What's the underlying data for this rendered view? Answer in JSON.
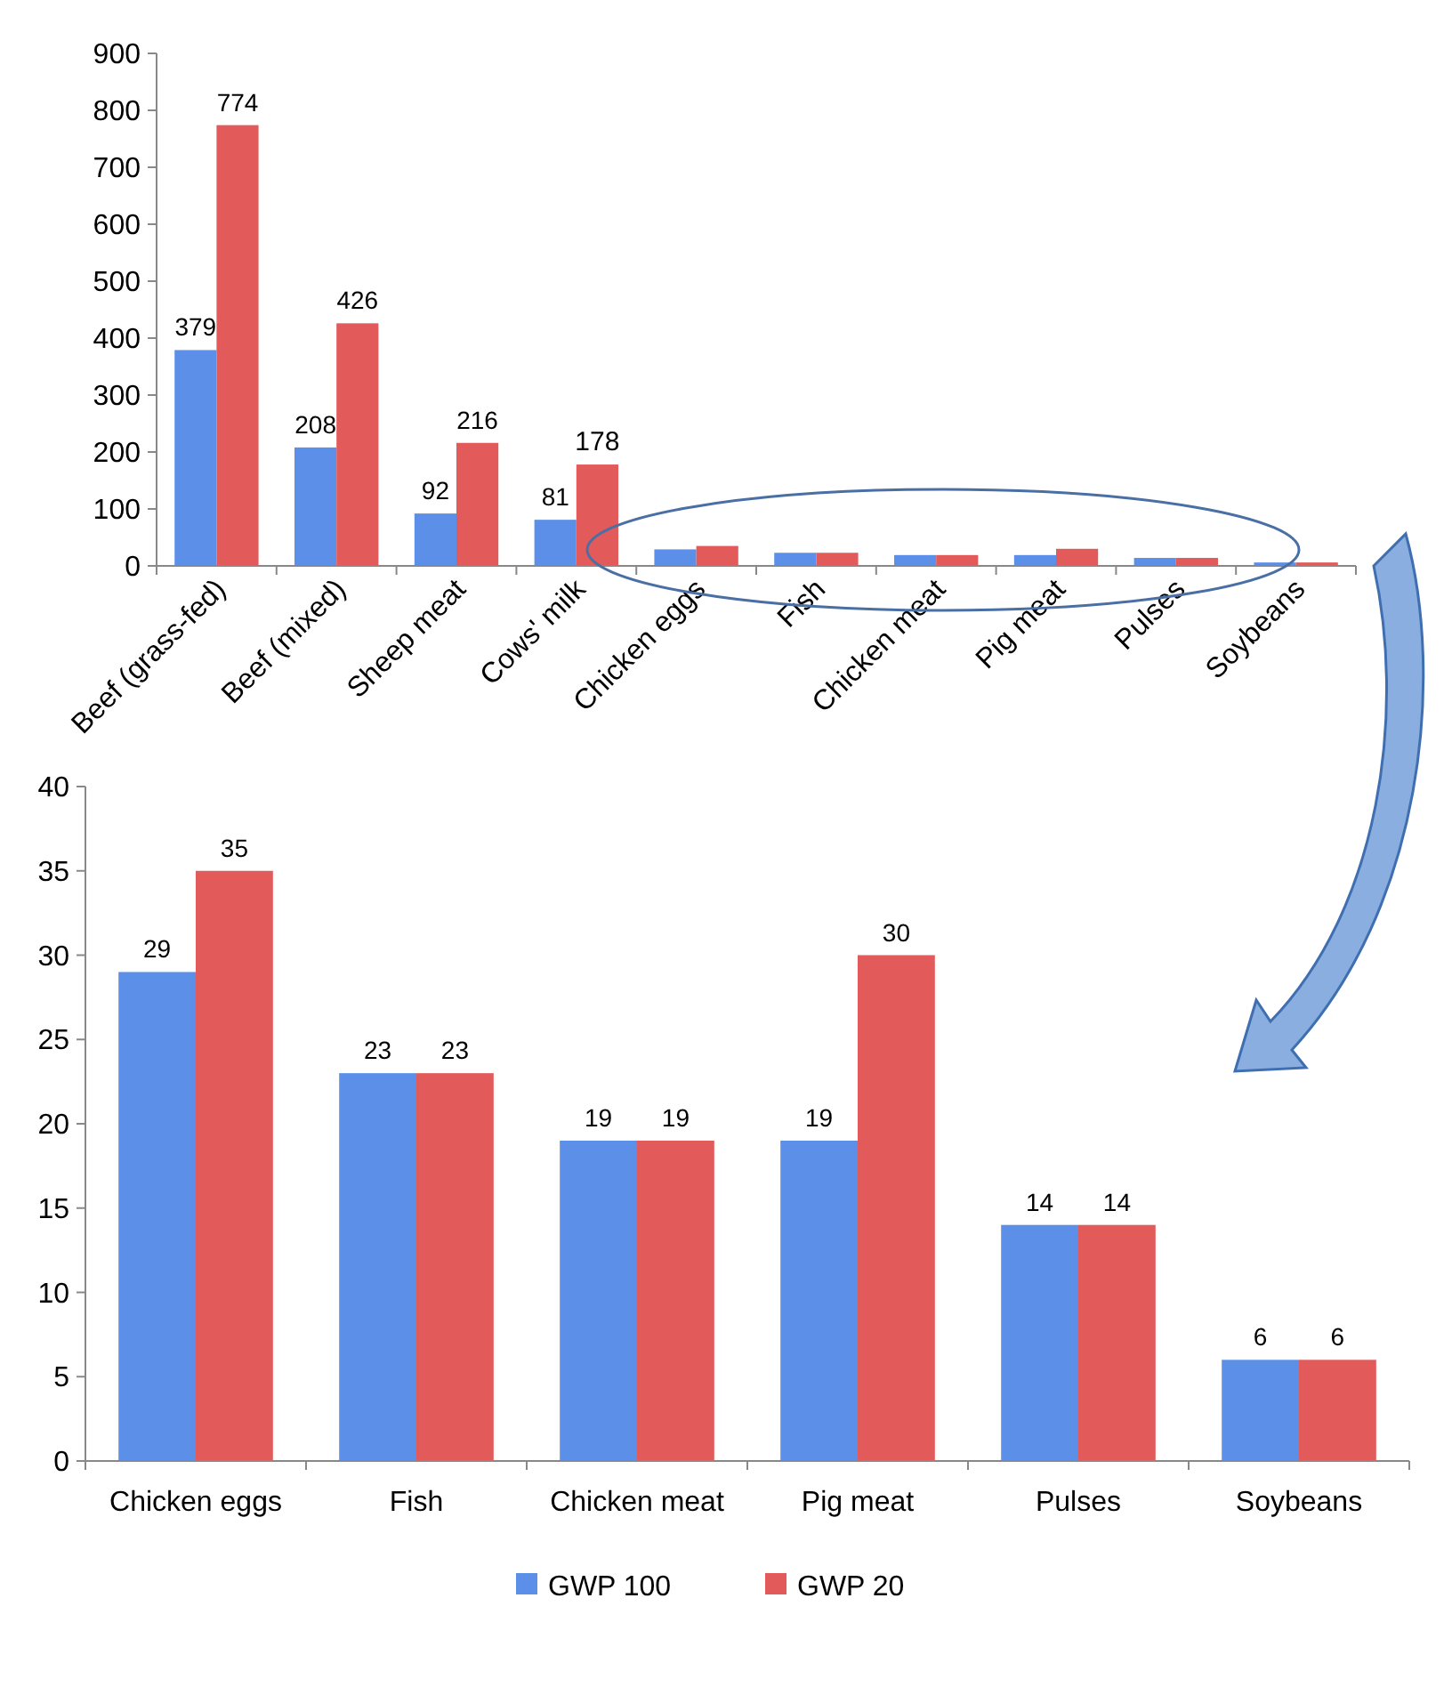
{
  "chart_data": [
    {
      "type": "bar",
      "categories": [
        "Beef (grass-fed)",
        "Beef (mixed)",
        "Sheep meat",
        "Cows' milk",
        "Chicken eggs",
        "Fish",
        "Chicken meat",
        "Pig meat",
        "Pulses",
        "Soybeans"
      ],
      "ylim": [
        0,
        900
      ],
      "yticks": [
        0,
        100,
        200,
        300,
        400,
        500,
        600,
        700,
        800,
        900
      ],
      "legend": false,
      "series": [
        {
          "color": "#5b8fe8",
          "values": [
            379,
            208,
            92,
            81,
            29,
            23,
            19,
            19,
            14,
            6
          ],
          "value_labels": [
            "379",
            "208",
            "92",
            "81",
            null,
            null,
            null,
            null,
            null,
            null
          ]
        },
        {
          "color": "#e25a5a",
          "values": [
            774,
            426,
            216,
            178,
            35,
            23,
            19,
            30,
            14,
            6
          ],
          "value_labels": [
            "774",
            "426",
            "216",
            "178",
            null,
            null,
            null,
            null,
            null,
            null
          ]
        }
      ]
    },
    {
      "type": "bar",
      "categories": [
        "Chicken eggs",
        "Fish",
        "Chicken meat",
        "Pig meat",
        "Pulses",
        "Soybeans"
      ],
      "ylim": [
        0,
        40
      ],
      "yticks": [
        0,
        5,
        10,
        15,
        20,
        25,
        30,
        35,
        40
      ],
      "legend": "bottom",
      "data_labels": true,
      "series": [
        {
          "name": "GWP 100",
          "color": "#5b8fe8",
          "values": [
            29,
            23,
            19,
            19,
            14,
            6
          ]
        },
        {
          "name": "GWP 20",
          "color": "#e25a5a",
          "values": [
            35,
            23,
            19,
            30,
            14,
            6
          ]
        }
      ]
    }
  ]
}
